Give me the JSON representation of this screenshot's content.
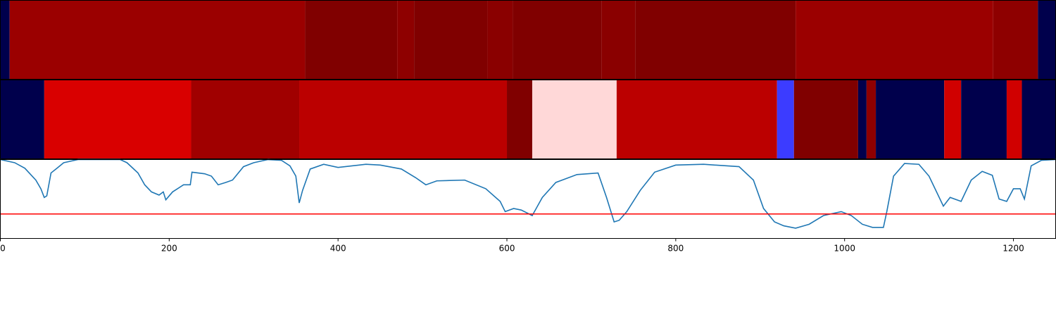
{
  "chart_data": [
    {
      "type": "strip",
      "xlim": [
        0,
        1250
      ],
      "edges": [
        0,
        11,
        361,
        470,
        490,
        577,
        607,
        712,
        752,
        942,
        1176,
        1229,
        1250
      ],
      "colors": [
        "#00004c",
        "#9b0000",
        "#800000",
        "#8e0000",
        "#800000",
        "#8a0000",
        "#800000",
        "#8a0000",
        "#800000",
        "#9b0000",
        "#8e0000",
        "#00004c"
      ]
    },
    {
      "type": "strip",
      "xlim": [
        0,
        1250
      ],
      "edges": [
        0,
        52,
        226,
        354,
        600,
        630,
        730,
        920,
        940,
        1016,
        1026,
        1037,
        1118,
        1138,
        1192,
        1210,
        1250
      ],
      "colors": [
        "#00004c",
        "#d90000",
        "#a00000",
        "#bb0000",
        "#800000",
        "#ffd8d8",
        "#bb0000",
        "#3c3cff",
        "#800000",
        "#00004c",
        "#8e0000",
        "#00004c",
        "#d00000",
        "#00004c",
        "#d00000",
        "#00004c"
      ]
    },
    {
      "type": "line",
      "xlim": [
        0,
        1250
      ],
      "xticks": [
        0,
        200,
        400,
        600,
        800,
        1000,
        1200
      ],
      "ylim": [
        0,
        1
      ],
      "color": "#1f77b4",
      "hline": 0.31,
      "hline_color": "#ff0000",
      "x": [
        0,
        17,
        29,
        42,
        48,
        52,
        55,
        60,
        67,
        75,
        92,
        142,
        150,
        163,
        171,
        179,
        188,
        193,
        196,
        204,
        217,
        225,
        227,
        242,
        250,
        258,
        267,
        275,
        288,
        300,
        317,
        333,
        343,
        350,
        354,
        358,
        367,
        383,
        400,
        433,
        450,
        475,
        492,
        504,
        517,
        550,
        575,
        592,
        598,
        608,
        617,
        630,
        642,
        658,
        683,
        708,
        718,
        727,
        733,
        742,
        758,
        775,
        800,
        833,
        875,
        892,
        904,
        917,
        928,
        942,
        958,
        975,
        996,
        1008,
        1021,
        1033,
        1046,
        1050,
        1058,
        1071,
        1088,
        1100,
        1117,
        1125,
        1138,
        1150,
        1163,
        1175,
        1183,
        1192,
        1200,
        1208,
        1213,
        1221,
        1233,
        1250
      ],
      "values": [
        1.0,
        0.96,
        0.89,
        0.74,
        0.63,
        0.52,
        0.54,
        0.83,
        0.89,
        0.96,
        1.0,
        1.0,
        0.96,
        0.83,
        0.68,
        0.59,
        0.55,
        0.59,
        0.49,
        0.59,
        0.68,
        0.68,
        0.84,
        0.82,
        0.79,
        0.68,
        0.71,
        0.74,
        0.91,
        0.96,
        1.0,
        0.99,
        0.92,
        0.79,
        0.45,
        0.61,
        0.88,
        0.94,
        0.9,
        0.94,
        0.93,
        0.88,
        0.77,
        0.68,
        0.73,
        0.74,
        0.63,
        0.47,
        0.34,
        0.38,
        0.36,
        0.29,
        0.52,
        0.71,
        0.81,
        0.83,
        0.52,
        0.21,
        0.23,
        0.34,
        0.61,
        0.84,
        0.93,
        0.94,
        0.91,
        0.74,
        0.38,
        0.21,
        0.16,
        0.13,
        0.18,
        0.29,
        0.34,
        0.29,
        0.18,
        0.14,
        0.14,
        0.34,
        0.79,
        0.95,
        0.94,
        0.79,
        0.41,
        0.52,
        0.47,
        0.74,
        0.85,
        0.8,
        0.5,
        0.47,
        0.63,
        0.63,
        0.5,
        0.92,
        0.99,
        1.0
      ]
    }
  ]
}
